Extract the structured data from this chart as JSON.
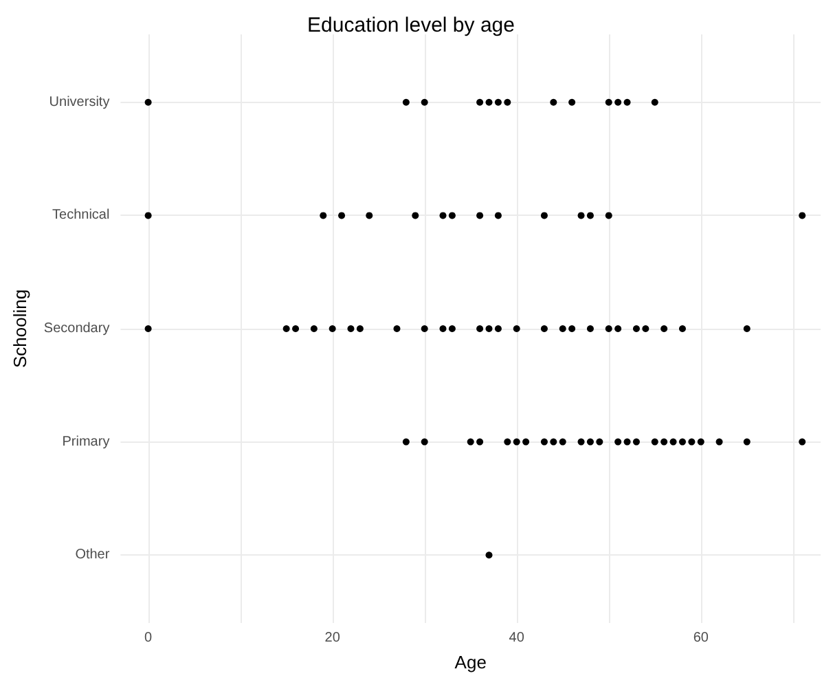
{
  "chart_data": {
    "type": "scatter",
    "title": "Education level by age",
    "xlabel": "Age",
    "ylabel": "Schooling",
    "orientation": "horizontal",
    "categories": [
      "University",
      "Technical",
      "Secondary",
      "Primary",
      "Other"
    ],
    "xlim": [
      -3,
      73
    ],
    "xticks": [
      0,
      {
        "value": 10,
        "label": null
      },
      20,
      {
        "value": 30,
        "label": null
      },
      40,
      {
        "value": 50,
        "label": null
      },
      60,
      {
        "value": 70,
        "label": null
      }
    ],
    "grid": true,
    "marker": "circle",
    "series": [
      {
        "color": "#000000",
        "values": [
          0,
          28,
          30,
          36,
          37,
          38,
          39,
          44,
          46,
          50,
          51,
          52,
          55,
          0,
          19,
          21,
          24,
          29,
          32,
          33,
          36,
          38,
          43,
          47,
          48,
          50,
          71,
          0,
          15,
          16,
          18,
          20,
          22,
          23,
          27,
          30,
          32,
          33,
          36,
          37,
          38,
          40,
          43,
          45,
          46,
          48,
          50,
          51,
          53,
          54,
          56,
          58,
          65,
          28,
          30,
          35,
          36,
          39,
          40,
          41,
          43,
          44,
          45,
          47,
          48,
          49,
          51,
          52,
          53,
          55,
          56,
          57,
          58,
          59,
          60,
          62,
          65,
          71,
          37
        ],
        "x": [
          "University",
          "University",
          "University",
          "University",
          "University",
          "University",
          "University",
          "University",
          "University",
          "University",
          "University",
          "University",
          "University",
          "Technical",
          "Technical",
          "Technical",
          "Technical",
          "Technical",
          "Technical",
          "Technical",
          "Technical",
          "Technical",
          "Technical",
          "Technical",
          "Technical",
          "Technical",
          "Technical",
          "Secondary",
          "Secondary",
          "Secondary",
          "Secondary",
          "Secondary",
          "Secondary",
          "Secondary",
          "Secondary",
          "Secondary",
          "Secondary",
          "Secondary",
          "Secondary",
          "Secondary",
          "Secondary",
          "Secondary",
          "Secondary",
          "Secondary",
          "Secondary",
          "Secondary",
          "Secondary",
          "Secondary",
          "Secondary",
          "Secondary",
          "Secondary",
          "Secondary",
          "Secondary",
          "Primary",
          "Primary",
          "Primary",
          "Primary",
          "Primary",
          "Primary",
          "Primary",
          "Primary",
          "Primary",
          "Primary",
          "Primary",
          "Primary",
          "Primary",
          "Primary",
          "Primary",
          "Primary",
          "Primary",
          "Primary",
          "Primary",
          "Primary",
          "Primary",
          "Primary",
          "Primary",
          "Primary",
          "Primary",
          "Other"
        ]
      }
    ]
  }
}
